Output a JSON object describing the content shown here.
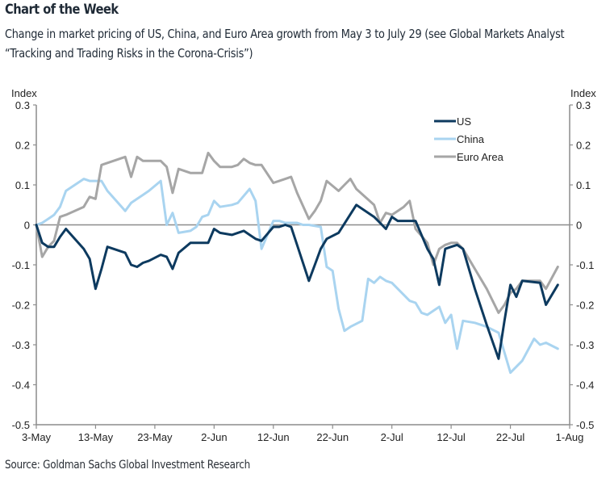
{
  "header": {
    "title": "Chart of the Week",
    "subtitle": "Change in market pricing of US, China, and Euro Area growth from May 3 to July 29 (see Global Markets Analyst “Tracking and Trading Risks in the Corona-Crisis”)"
  },
  "footer": {
    "source": "Source: Goldman Sachs Global Investment Research"
  },
  "chart_data": {
    "type": "line",
    "title": "Change in market pricing of US, China, and Euro Area growth",
    "xlabel": "",
    "ylabel_left": "Index",
    "ylabel_right": "Index",
    "ylim": [
      -0.5,
      0.3
    ],
    "y_ticks": [
      "0.3",
      "0.2",
      "0.1",
      "0",
      "-0.1",
      "-0.2",
      "-0.3",
      "-0.4",
      "-0.5"
    ],
    "y_tick_values": [
      0.3,
      0.2,
      0.1,
      0,
      -0.1,
      -0.2,
      -0.3,
      -0.4,
      -0.5
    ],
    "x_ticks": [
      "3-May",
      "13-May",
      "23-May",
      "2-Jun",
      "12-Jun",
      "22-Jun",
      "2-Jul",
      "12-Jul",
      "22-Jul",
      "1-Aug"
    ],
    "x_tick_days": [
      0,
      10,
      20,
      30,
      40,
      50,
      60,
      70,
      80,
      90
    ],
    "x_unit": "days since 3-May",
    "xlim": [
      0,
      90
    ],
    "grid": false,
    "zero_line": true,
    "legend_position": "top-right",
    "series": [
      {
        "name": "US",
        "color": "#0d3a5f",
        "x": [
          0,
          1,
          2,
          3,
          4,
          5,
          8,
          9,
          10,
          11,
          12,
          15,
          16,
          17,
          18,
          19,
          21,
          22,
          23,
          24,
          26,
          27,
          28,
          29,
          30,
          31,
          33,
          34,
          35,
          36,
          37,
          38,
          40,
          41,
          42,
          43,
          44,
          46,
          47,
          48,
          49,
          51,
          54,
          57,
          58,
          59,
          60,
          61,
          62,
          63,
          64,
          66,
          67,
          68,
          69,
          70,
          71,
          72,
          74,
          76,
          78,
          79,
          80,
          81,
          82,
          85,
          86,
          88
        ],
        "y": [
          0,
          -0.045,
          -0.055,
          -0.055,
          -0.03,
          -0.01,
          -0.06,
          -0.085,
          -0.16,
          -0.11,
          -0.055,
          -0.07,
          -0.1,
          -0.105,
          -0.095,
          -0.09,
          -0.075,
          -0.08,
          -0.11,
          -0.07,
          -0.045,
          -0.045,
          -0.045,
          -0.045,
          -0.01,
          -0.02,
          -0.025,
          -0.02,
          -0.015,
          -0.025,
          -0.035,
          -0.04,
          -0.005,
          -0.005,
          0.0,
          -0.005,
          -0.05,
          -0.14,
          -0.1,
          -0.06,
          -0.035,
          -0.02,
          0.05,
          0.02,
          0.005,
          -0.01,
          0.02,
          0.01,
          0.01,
          0.01,
          0.01,
          -0.06,
          -0.085,
          -0.15,
          -0.06,
          -0.055,
          -0.05,
          -0.06,
          -0.16,
          -0.25,
          -0.335,
          -0.24,
          -0.15,
          -0.18,
          -0.14,
          -0.145,
          -0.2,
          -0.15
        ]
      },
      {
        "name": "China",
        "color": "#a9d4f0",
        "x": [
          0,
          1,
          2,
          3,
          4,
          5,
          8,
          9,
          10,
          11,
          12,
          15,
          16,
          17,
          18,
          19,
          21,
          22,
          23,
          24,
          26,
          27,
          28,
          29,
          30,
          31,
          33,
          34,
          36,
          37,
          38,
          40,
          41,
          42,
          43,
          44,
          45,
          46,
          48,
          49,
          50,
          51,
          52,
          53,
          55,
          56,
          57,
          58,
          59,
          60,
          63,
          64,
          65,
          66,
          67,
          68,
          69,
          70,
          71,
          72,
          74,
          76,
          78,
          80,
          81,
          82,
          84,
          85,
          86,
          88
        ],
        "y": [
          0,
          0.005,
          0.015,
          0.025,
          0.045,
          0.085,
          0.115,
          0.11,
          0.11,
          0.11,
          0.085,
          0.035,
          0.055,
          0.065,
          0.075,
          0.085,
          0.11,
          0.0,
          0.03,
          -0.02,
          -0.015,
          -0.005,
          0.02,
          0.025,
          0.06,
          0.045,
          0.05,
          0.055,
          0.09,
          0.06,
          -0.06,
          0.01,
          0.01,
          0.005,
          0.005,
          0.005,
          0.0,
          0.0,
          -0.005,
          -0.105,
          -0.115,
          -0.21,
          -0.265,
          -0.255,
          -0.24,
          -0.135,
          -0.145,
          -0.13,
          -0.14,
          -0.145,
          -0.19,
          -0.195,
          -0.22,
          -0.225,
          -0.215,
          -0.205,
          -0.245,
          -0.225,
          -0.31,
          -0.24,
          -0.245,
          -0.255,
          -0.27,
          -0.37,
          -0.355,
          -0.34,
          -0.285,
          -0.3,
          -0.295,
          -0.31
        ]
      },
      {
        "name": "Euro Area",
        "color": "#a6a6a6",
        "x": [
          0,
          1,
          2,
          3,
          4,
          5,
          8,
          9,
          10,
          11,
          12,
          15,
          16,
          17,
          18,
          19,
          21,
          22,
          23,
          24,
          26,
          27,
          28,
          29,
          30,
          31,
          33,
          34,
          35,
          36,
          37,
          38,
          40,
          41,
          42,
          43,
          44,
          46,
          47,
          48,
          49,
          51,
          52,
          53,
          54,
          57,
          58,
          59,
          60,
          61,
          62,
          63,
          64,
          66,
          67,
          68,
          69,
          70,
          71,
          72,
          74,
          76,
          78,
          79,
          80,
          81,
          82,
          85,
          86,
          88
        ],
        "y": [
          0,
          -0.08,
          -0.055,
          -0.04,
          0.02,
          0.025,
          0.045,
          0.07,
          0.065,
          0.15,
          0.155,
          0.17,
          0.12,
          0.17,
          0.16,
          0.16,
          0.16,
          0.145,
          0.08,
          0.14,
          0.13,
          0.13,
          0.13,
          0.18,
          0.16,
          0.145,
          0.145,
          0.15,
          0.165,
          0.155,
          0.15,
          0.15,
          0.105,
          0.11,
          0.115,
          0.12,
          0.08,
          0.015,
          0.035,
          0.06,
          0.11,
          0.085,
          0.1,
          0.115,
          0.09,
          0.05,
          0.005,
          0.03,
          0.025,
          0.035,
          0.045,
          0.06,
          -0.01,
          -0.045,
          -0.1,
          -0.06,
          -0.05,
          -0.045,
          -0.045,
          -0.06,
          -0.11,
          -0.16,
          -0.22,
          -0.2,
          -0.17,
          -0.16,
          -0.14,
          -0.14,
          -0.16,
          -0.105
        ]
      }
    ]
  }
}
